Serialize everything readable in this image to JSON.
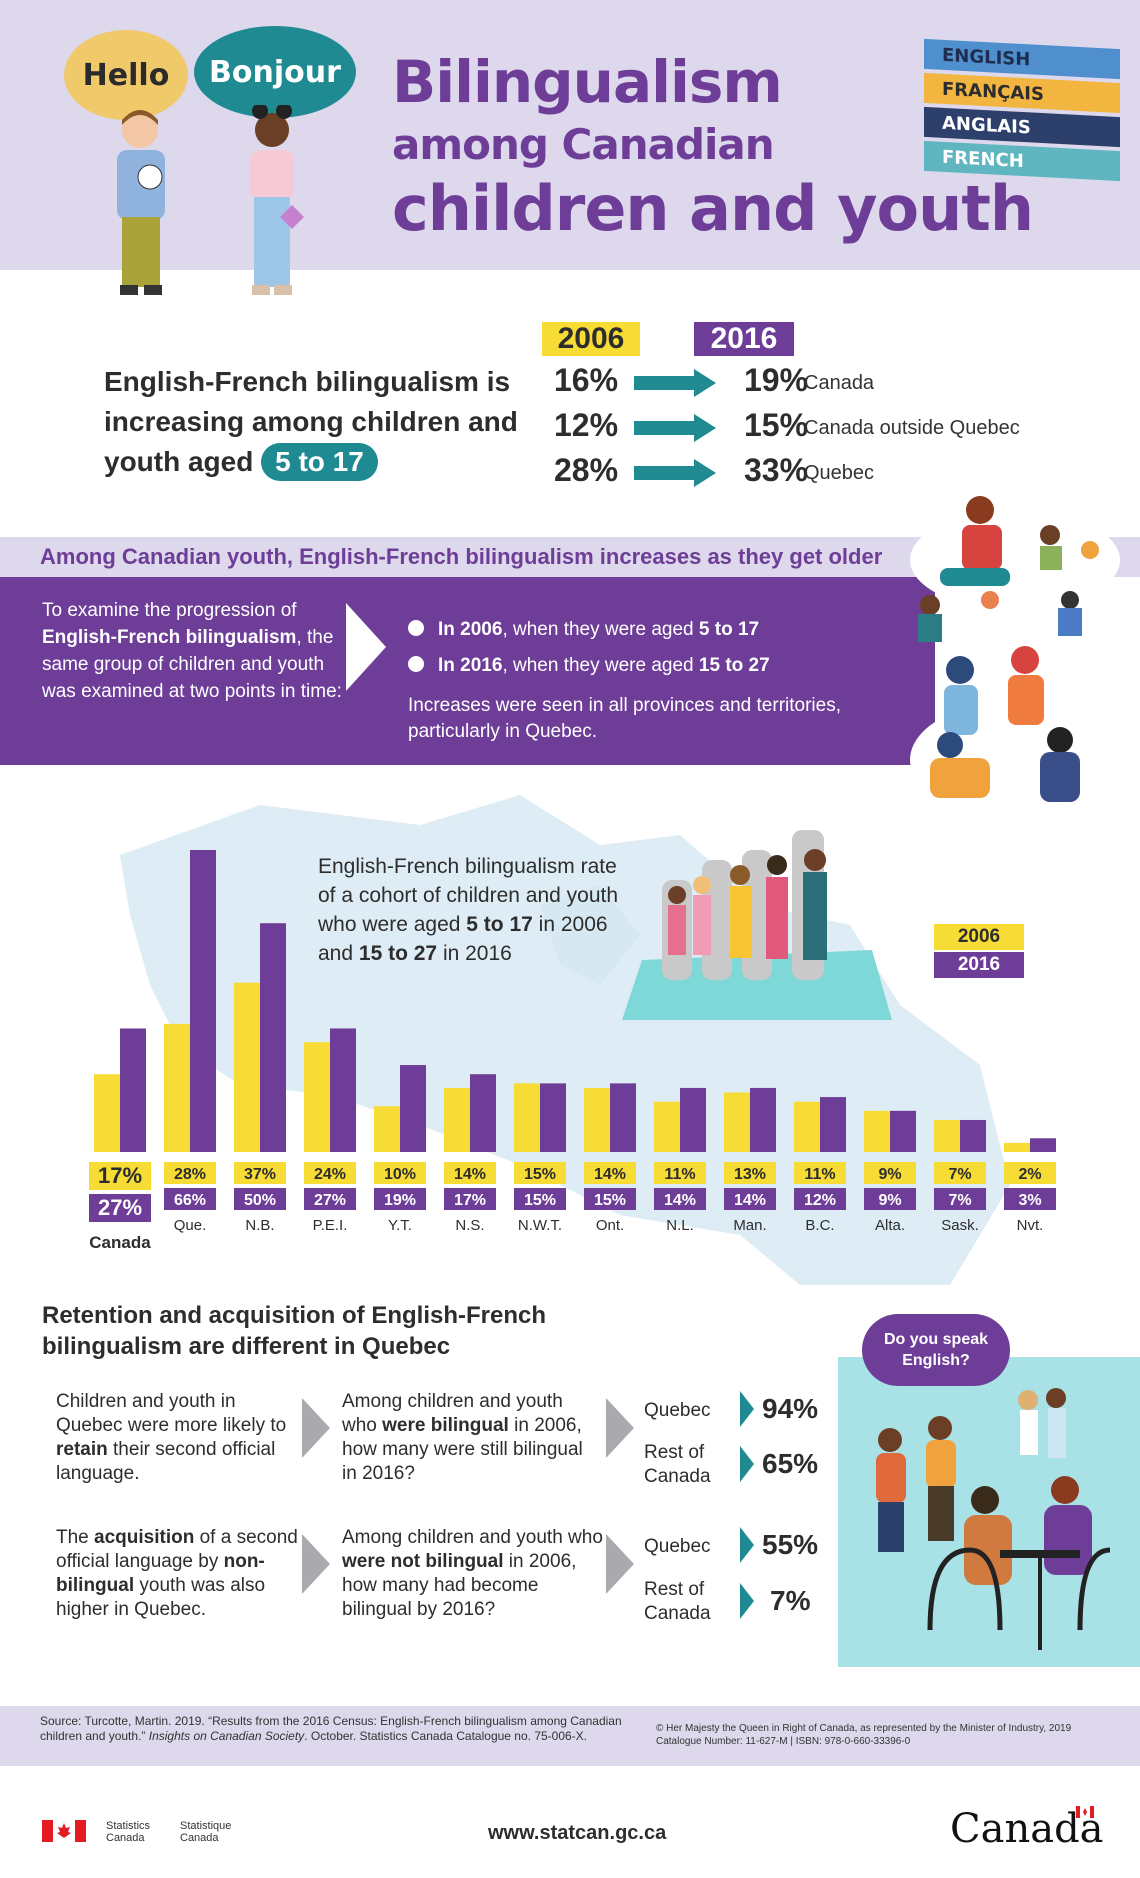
{
  "header": {
    "bubble_hello": "Hello",
    "bubble_bonjour": "Bonjour",
    "title_line1": "Bilingualism",
    "title_line2": "among Canadian",
    "title_line3": "children and youth",
    "books": [
      "ENGLISH",
      "FRANÇAIS",
      "ANGLAIS",
      "FRENCH"
    ]
  },
  "headline": {
    "text": "English-French bilingualism is increasing among children and youth aged",
    "age_pill": "5 to 17",
    "year_from": "2006",
    "year_to": "2016",
    "rows": [
      {
        "from": "16%",
        "to": "19%",
        "label": "Canada"
      },
      {
        "from": "12%",
        "to": "15%",
        "label": "Canada outside Quebec"
      },
      {
        "from": "28%",
        "to": "33%",
        "label": "Quebec"
      }
    ]
  },
  "cohort": {
    "heading": "Among Canadian youth, English-French bilingualism increases as they get older",
    "intro_pre": "To examine the progression of",
    "intro_bold": "English-French bilingualism",
    "intro_post": ", the same group of children and youth was examined at two points in time:",
    "bullet1_bold": "In 2006",
    "bullet1_mid": ", when they were aged",
    "bullet1_age": "5 to 17",
    "bullet2_bold": "In 2016",
    "bullet2_mid": ", when they were aged",
    "bullet2_age": "15 to 27",
    "increase_note": "Increases were seen in all provinces and territories, particularly in Quebec."
  },
  "chart_note": {
    "line1": "English-French bilingualism rate of a cohort of children and youth who were aged",
    "age1": "5 to 17",
    "mid": "in 2006 and",
    "age2": "15 to 27",
    "end": "in 2016"
  },
  "legend": {
    "y2006": "2006",
    "y2016": "2016"
  },
  "chart_data": {
    "type": "bar",
    "categories": [
      "Canada",
      "Que.",
      "N.B.",
      "P.E.I.",
      "Y.T.",
      "N.S.",
      "N.W.T.",
      "Ont.",
      "N.L.",
      "Man.",
      "B.C.",
      "Alta.",
      "Sask.",
      "Nvt."
    ],
    "series": [
      {
        "name": "2006",
        "values": [
          17,
          28,
          37,
          24,
          10,
          14,
          15,
          14,
          11,
          13,
          11,
          9,
          7,
          2
        ],
        "labels": [
          "17%",
          "28%",
          "37%",
          "24%",
          "10%",
          "14%",
          "15%",
          "14%",
          "11%",
          "13%",
          "11%",
          "9%",
          "7%",
          "2%"
        ],
        "color": "#f7dc35"
      },
      {
        "name": "2016",
        "values": [
          27,
          66,
          50,
          27,
          19,
          17,
          15,
          15,
          14,
          14,
          12,
          9,
          7,
          3
        ],
        "labels": [
          "27%",
          "66%",
          "50%",
          "27%",
          "19%",
          "17%",
          "15%",
          "15%",
          "14%",
          "14%",
          "12%",
          "9%",
          "7%",
          "3%"
        ],
        "color": "#6e3d98"
      }
    ],
    "ylim": [
      0,
      66
    ]
  },
  "retention": {
    "title": "Retention and acquisition of English-French bilingualism are different in Quebec",
    "speech": "Do you speak English?",
    "row1": {
      "left_pre": "Children and youth in Quebec were more likely to",
      "left_bold": "retain",
      "left_post": "their second official language.",
      "q_pre": "Among children and youth who",
      "q_bold": "were bilingual",
      "q_post": "in 2006, how many were still bilingual in 2016?",
      "quebec_label": "Quebec",
      "quebec_pct": "94%",
      "rest_label": "Rest of Canada",
      "rest_pct": "65%"
    },
    "row2": {
      "left_pre": "The",
      "left_bold1": "acquisition",
      "left_mid": "of a second official language by",
      "left_bold2": "non-bilingual",
      "left_post": "youth was also higher in Quebec.",
      "q_pre": "Among children and youth who",
      "q_bold": "were not bilingual",
      "q_post": "in 2006, how many had become bilingual by 2016?",
      "quebec_label": "Quebec",
      "quebec_pct": "55%",
      "rest_label": "Rest of Canada",
      "rest_pct": "7%"
    }
  },
  "footer": {
    "source_pre": "Source: Turcotte, Martin. 2019. “Results from the 2016 Census: English-French bilingualism among Canadian children and youth.”",
    "source_italic": "Insights on Canadian Society",
    "source_post": ". October. Statistics Canada Catalogue no. 75-006-X.",
    "copyright": "© Her Majesty the Queen in Right of Canada, as represented by the Minister of Industry, 2019",
    "catalogue": "Catalogue Number: 11-627-M | ISBN: 978-0-660-33396-0",
    "stats_en": "Statistics Canada",
    "stats_fr": "Statistique Canada",
    "url": "www.statcan.gc.ca",
    "wordmark": "Canada"
  }
}
